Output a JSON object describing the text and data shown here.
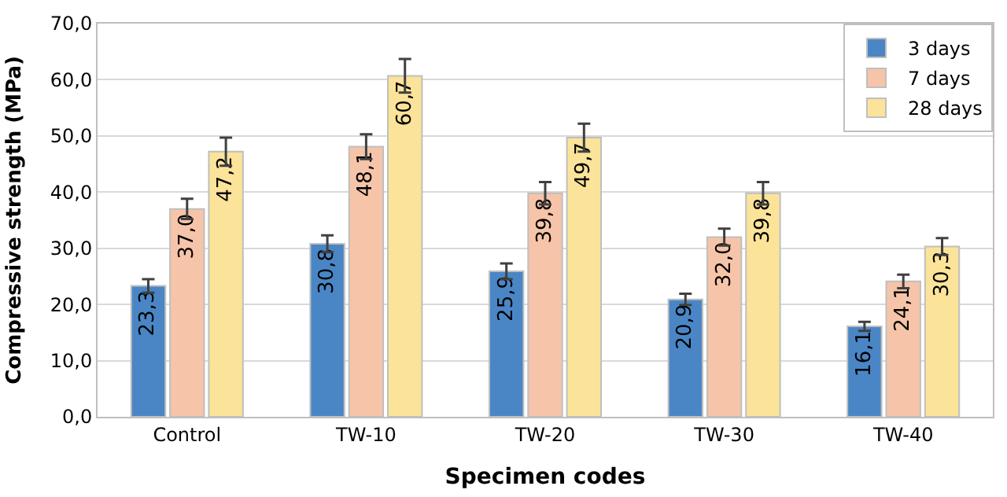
{
  "chart_data": {
    "type": "bar",
    "xlabel": "Specimen codes",
    "ylabel": "Compressive strength (MPa)",
    "categories": [
      "Control",
      "TW-10",
      "TW-20",
      "TW-30",
      "TW-40"
    ],
    "series": [
      {
        "name": "3 days",
        "color": "#4a86c5",
        "values": [
          23.3,
          30.8,
          25.9,
          20.9,
          16.1
        ],
        "value_labels": [
          "23,3",
          "30,8",
          "25,9",
          "20,9",
          "16,1"
        ],
        "errors": [
          1.2,
          1.5,
          1.4,
          1.0,
          0.8
        ]
      },
      {
        "name": "7 days",
        "color": "#f6c4a8",
        "values": [
          37.0,
          48.1,
          39.8,
          32.0,
          24.1
        ],
        "value_labels": [
          "37,0",
          "48,1",
          "39,8",
          "32,0",
          "24,1"
        ],
        "errors": [
          1.8,
          2.2,
          2.0,
          1.5,
          1.2
        ]
      },
      {
        "name": "28 days",
        "color": "#fbe39a",
        "values": [
          47.2,
          60.7,
          49.7,
          39.8,
          30.3
        ],
        "value_labels": [
          "47,2",
          "60,7",
          "49,7",
          "39,8",
          "30,3"
        ],
        "errors": [
          2.5,
          3.0,
          2.5,
          2.0,
          1.5
        ]
      }
    ],
    "ylim": [
      0,
      70
    ],
    "yticks": [
      {
        "value": 0,
        "label": "0,0"
      },
      {
        "value": 10,
        "label": "10,0"
      },
      {
        "value": 20,
        "label": "20,0"
      },
      {
        "value": 30,
        "label": "30,0"
      },
      {
        "value": 40,
        "label": "40,0"
      },
      {
        "value": 50,
        "label": "50,0"
      },
      {
        "value": 60,
        "label": "60,0"
      },
      {
        "value": 70,
        "label": "70,0"
      }
    ],
    "grid": "y",
    "legend": "top right"
  }
}
